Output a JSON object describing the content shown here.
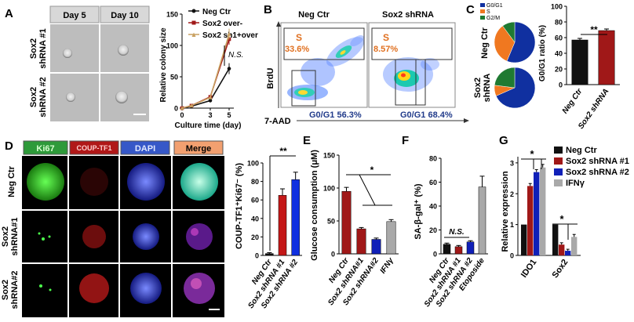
{
  "panel_labels": {
    "A": "A",
    "B": "B",
    "C": "C",
    "D": "D",
    "E": "E",
    "F": "F",
    "G": "G"
  },
  "colors": {
    "black": "#111111",
    "red": "#a01818",
    "blue": "#1020b8",
    "gray": "#a9a9a9",
    "orange": "#f07820",
    "green": "#1f7a32",
    "navy": "#1030a0",
    "tan": "#c8a060"
  },
  "panel_a": {
    "day_headers": [
      "Day 5",
      "Day 10"
    ],
    "row_labels": [
      [
        "Sox2",
        "shRNA #1"
      ],
      [
        "Sox2",
        "shRNA #2"
      ]
    ],
    "chart_data": {
      "type": "line",
      "x": [
        0,
        1,
        3,
        5
      ],
      "xticks": [
        "0",
        "1",
        "3",
        "5"
      ],
      "xlabel": "Culture time (day)",
      "ylabel": "Relative colony size",
      "yticks": [
        "0",
        "50",
        "100",
        "150"
      ],
      "ylim": [
        0,
        150
      ],
      "series": [
        {
          "name": "Neg Ctr",
          "color": "#111111",
          "values": [
            0,
            3,
            12,
            63
          ]
        },
        {
          "name": "Sox2 over-",
          "color": "#a01818",
          "values": [
            0,
            4,
            18,
            110
          ]
        },
        {
          "name": "Sox2 sh1+over",
          "color": "#c8a060",
          "values": [
            0,
            4,
            17,
            118
          ]
        }
      ],
      "annotation": "N.S."
    }
  },
  "panel_b": {
    "titles": [
      "Neg Ctr",
      "Sox2 shRNA"
    ],
    "s_label": "S",
    "s_values": [
      "33.6%",
      "8.57%"
    ],
    "g1_values": [
      "G0/G1 56.3%",
      "G0/G1 68.4%"
    ],
    "ylabel": "BrdU",
    "xlabel": "7-AAD"
  },
  "panel_c": {
    "legend": [
      "G0/G1",
      "S",
      "G2/M"
    ],
    "pie_labels": [
      [
        "Neg Ctr"
      ],
      [
        "Sox2",
        "shRNA"
      ]
    ],
    "pies": [
      {
        "name": "Neg Ctr",
        "values": [
          56.3,
          33.6,
          10.1
        ]
      },
      {
        "name": "Sox2 shRNA",
        "values": [
          68.4,
          8.57,
          23.03
        ]
      }
    ],
    "chart_data": {
      "type": "bar",
      "categories": [
        "Neg Ctr",
        "Sox2 shRNA"
      ],
      "values": [
        57,
        69
      ],
      "errors": [
        2,
        2
      ],
      "ylabel": "G0/G1 ratio (%)",
      "yticks": [
        "0",
        "20",
        "40",
        "60",
        "80",
        "100"
      ],
      "ylim": [
        0,
        100
      ],
      "annotation": "**"
    }
  },
  "panel_d": {
    "channels": [
      "Ki67",
      "COUP-TF1",
      "DAPI",
      "Merge"
    ],
    "row_labels": [
      [
        "Neg Ctr"
      ],
      [
        "Sox2",
        "shRNA#1"
      ],
      [
        "Sox2",
        "shRNA#2"
      ]
    ],
    "chart_data": {
      "type": "bar",
      "categories": [
        "Neg Ctr",
        "Sox2 shRNA #1",
        "Sox2 shRNA #2"
      ],
      "values": [
        2,
        65,
        82
      ],
      "errors": [
        1,
        7,
        8
      ],
      "ylabel": "COUP-TF1⁺Ki67⁻ (%)",
      "yticks": [
        "0",
        "20",
        "40",
        "60",
        "80",
        "100"
      ],
      "ylim": [
        0,
        100
      ],
      "annotation": "**"
    }
  },
  "panel_e": {
    "chart_data": {
      "type": "bar",
      "categories": [
        "Neg Ctr",
        "Sox2 shRNA#1",
        "Sox2 shRNA#2",
        "IFNγ"
      ],
      "values": [
        95,
        38,
        22,
        49
      ],
      "errors": [
        6,
        2,
        2,
        3
      ],
      "ylabel": "Glucose consumption (μM)",
      "yticks": [
        "0",
        "50",
        "100",
        "150"
      ],
      "ylim": [
        0,
        150
      ],
      "annotation": "*"
    }
  },
  "panel_f": {
    "chart_data": {
      "type": "bar",
      "categories": [
        "Neg Ctr",
        "Sox2 shRNA #1",
        "Sox2 shRNA #2",
        "Etoposide"
      ],
      "values": [
        8,
        6,
        10,
        56
      ],
      "errors": [
        1,
        1,
        1,
        9
      ],
      "ylabel": "SA-β-gal⁺ (%)",
      "yticks": [
        "0",
        "20",
        "40",
        "60",
        "80"
      ],
      "ylim": [
        0,
        80
      ],
      "annotation": "N.S."
    }
  },
  "panel_g": {
    "chart_data": {
      "type": "bar",
      "categories": [
        "IDO1",
        "Sox2"
      ],
      "series": [
        {
          "name": "Neg Ctr",
          "color": "#111111",
          "values": [
            1.0,
            1.0
          ],
          "errors": [
            0,
            0
          ]
        },
        {
          "name": "Sox2 shRNA #1",
          "color": "#a01818",
          "values": [
            2.25,
            0.35
          ],
          "errors": [
            0.08,
            0.06
          ]
        },
        {
          "name": "Sox2 shRNA #2",
          "color": "#1020b8",
          "values": [
            2.7,
            0.15
          ],
          "errors": [
            0.08,
            0.05
          ]
        },
        {
          "name": "IFNγ",
          "color": "#a9a9a9",
          "values": [
            2.85,
            0.6
          ],
          "errors": [
            0.1,
            0.08
          ]
        }
      ],
      "ylabel": "Relative expression",
      "yticks": [
        "0",
        "1",
        "2",
        "3"
      ],
      "ylim": [
        0,
        3.2
      ],
      "annotations": [
        "*",
        "*"
      ]
    }
  }
}
